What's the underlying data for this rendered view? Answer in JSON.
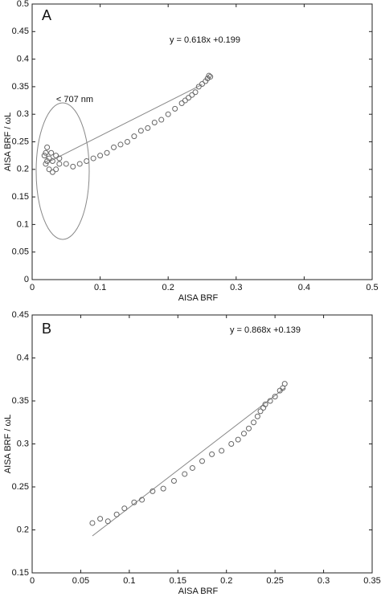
{
  "chart_data": [
    {
      "type": "scatter",
      "panel_label": "A",
      "annotations": [
        "y = 0.618x +0.199",
        "< 707 nm"
      ],
      "xlabel": "AISA BRF",
      "ylabel": "AISA BRF / ωL",
      "color": "#666666",
      "xlim": [
        0,
        0.5
      ],
      "ylim": [
        0,
        0.5
      ],
      "xticks": [
        0,
        0.1,
        0.2,
        0.3,
        0.4,
        0.5
      ],
      "yticks": [
        0,
        0.05,
        0.1,
        0.15,
        0.2,
        0.25,
        0.3,
        0.35,
        0.4,
        0.45,
        0.5
      ],
      "x": [
        0.02,
        0.022,
        0.025,
        0.02,
        0.025,
        0.03,
        0.035,
        0.03,
        0.028,
        0.035,
        0.04,
        0.04,
        0.022,
        0.018,
        0.05,
        0.06,
        0.07,
        0.08,
        0.09,
        0.1,
        0.11,
        0.12,
        0.13,
        0.14,
        0.15,
        0.16,
        0.17,
        0.18,
        0.19,
        0.2,
        0.21,
        0.22,
        0.225,
        0.23,
        0.235,
        0.24,
        0.245,
        0.25,
        0.255,
        0.258,
        0.26,
        0.262
      ],
      "values": [
        0.23,
        0.24,
        0.22,
        0.21,
        0.2,
        0.195,
        0.2,
        0.215,
        0.23,
        0.225,
        0.22,
        0.21,
        0.215,
        0.225,
        0.21,
        0.205,
        0.21,
        0.215,
        0.22,
        0.225,
        0.23,
        0.24,
        0.245,
        0.25,
        0.26,
        0.27,
        0.275,
        0.285,
        0.29,
        0.3,
        0.31,
        0.32,
        0.325,
        0.33,
        0.335,
        0.34,
        0.35,
        0.355,
        0.36,
        0.365,
        0.37,
        0.368
      ],
      "fit_line": {
        "x": [
          0.025,
          0.25
        ],
        "values": [
          0.214,
          0.354
        ]
      }
    },
    {
      "type": "scatter",
      "panel_label": "B",
      "annotations": [
        "y = 0.868x +0.139"
      ],
      "xlabel": "AISA BRF",
      "ylabel": "AISA BRF / ωL",
      "color": "#666666",
      "xlim": [
        0,
        0.35
      ],
      "ylim": [
        0.15,
        0.45
      ],
      "xticks": [
        0,
        0.05,
        0.1,
        0.15,
        0.2,
        0.25,
        0.3,
        0.35
      ],
      "yticks": [
        0.15,
        0.2,
        0.25,
        0.3,
        0.35,
        0.4,
        0.45
      ],
      "x": [
        0.062,
        0.07,
        0.078,
        0.087,
        0.095,
        0.105,
        0.113,
        0.124,
        0.135,
        0.146,
        0.157,
        0.165,
        0.175,
        0.185,
        0.195,
        0.205,
        0.212,
        0.218,
        0.223,
        0.228,
        0.232,
        0.235,
        0.238,
        0.24,
        0.245,
        0.25,
        0.255,
        0.26,
        0.258
      ],
      "values": [
        0.208,
        0.213,
        0.21,
        0.218,
        0.225,
        0.232,
        0.235,
        0.245,
        0.248,
        0.257,
        0.265,
        0.272,
        0.28,
        0.288,
        0.292,
        0.3,
        0.305,
        0.312,
        0.318,
        0.325,
        0.332,
        0.338,
        0.342,
        0.346,
        0.35,
        0.355,
        0.362,
        0.37,
        0.365
      ],
      "fit_line": {
        "x": [
          0.062,
          0.26
        ],
        "values": [
          0.193,
          0.365
        ]
      }
    }
  ]
}
